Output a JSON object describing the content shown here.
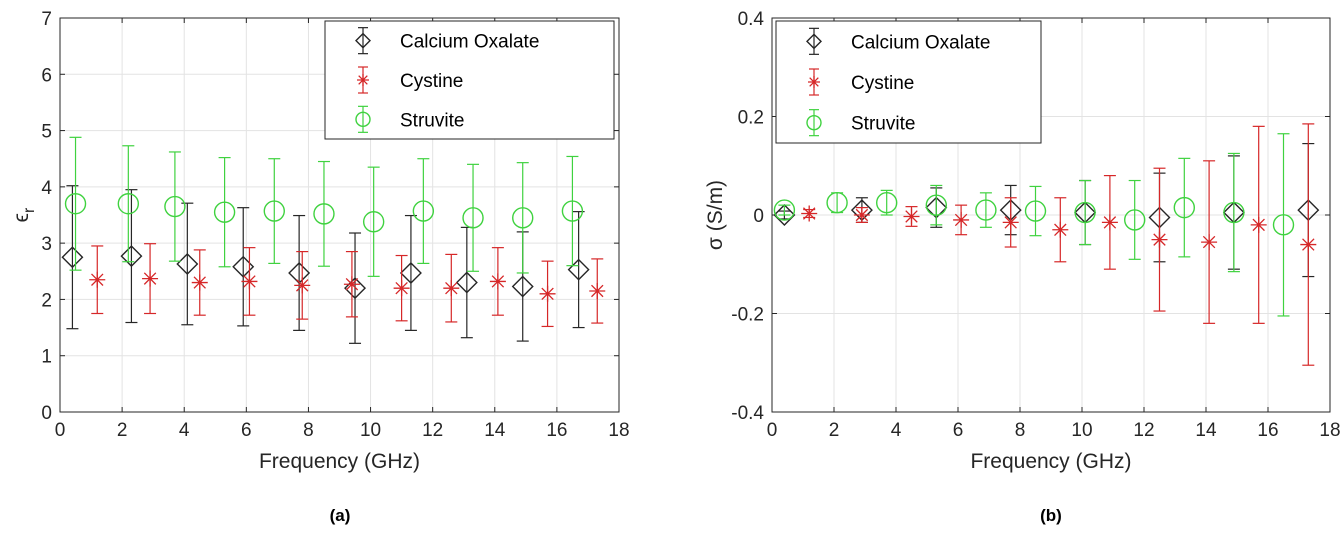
{
  "colors": {
    "Calcium Oxalate": "#262626",
    "Cystine": "#d62728",
    "Struvite": "#3fd23f",
    "grid": "#e3e3e3",
    "axis": "#262626"
  },
  "chart_data": [
    {
      "type": "scatter",
      "caption": "(a)",
      "xlabel": "Frequency (GHz)",
      "ylabel": "ϵ",
      "ylabel_sub": "r",
      "xlim": [
        0,
        18
      ],
      "ylim": [
        0,
        7
      ],
      "xticks": [
        0,
        2,
        4,
        6,
        8,
        10,
        12,
        14,
        16,
        18
      ],
      "yticks": [
        0,
        1,
        2,
        3,
        4,
        5,
        6,
        7
      ],
      "grid": true,
      "legend_position": "top-right",
      "series": [
        {
          "name": "Calcium Oxalate",
          "marker": "diamond",
          "x": [
            0.4,
            2.3,
            4.1,
            5.9,
            7.7,
            9.5,
            11.3,
            13.1,
            14.9,
            16.7
          ],
          "y": [
            2.75,
            2.77,
            2.63,
            2.58,
            2.47,
            2.2,
            2.47,
            2.3,
            2.23,
            2.53
          ],
          "err": [
            1.27,
            1.18,
            1.08,
            1.05,
            1.02,
            0.98,
            1.02,
            0.98,
            0.97,
            1.03
          ]
        },
        {
          "name": "Cystine",
          "marker": "star",
          "x": [
            1.2,
            2.9,
            4.5,
            6.1,
            7.8,
            9.4,
            11.0,
            12.6,
            14.1,
            15.7,
            17.3
          ],
          "y": [
            2.35,
            2.37,
            2.3,
            2.32,
            2.25,
            2.27,
            2.2,
            2.2,
            2.32,
            2.1,
            2.15
          ],
          "err": [
            0.6,
            0.62,
            0.58,
            0.6,
            0.6,
            0.58,
            0.58,
            0.6,
            0.6,
            0.58,
            0.57
          ]
        },
        {
          "name": "Struvite",
          "marker": "circle",
          "x": [
            0.5,
            2.2,
            3.7,
            5.3,
            6.9,
            8.5,
            10.1,
            11.7,
            13.3,
            14.9,
            16.5
          ],
          "y": [
            3.7,
            3.7,
            3.65,
            3.55,
            3.57,
            3.52,
            3.38,
            3.57,
            3.45,
            3.45,
            3.57
          ],
          "err": [
            1.18,
            1.03,
            0.97,
            0.97,
            0.93,
            0.93,
            0.97,
            0.93,
            0.95,
            0.98,
            0.97
          ]
        }
      ]
    },
    {
      "type": "scatter",
      "caption": "(b)",
      "xlabel": "Frequency (GHz)",
      "ylabel": "σ (S/m)",
      "xlim": [
        0,
        18
      ],
      "ylim": [
        -0.4,
        0.4
      ],
      "xticks": [
        0,
        2,
        4,
        6,
        8,
        10,
        12,
        14,
        16,
        18
      ],
      "yticks": [
        -0.4,
        -0.2,
        0,
        0.2,
        0.4
      ],
      "grid": true,
      "legend_position": "top-left",
      "series": [
        {
          "name": "Calcium Oxalate",
          "marker": "diamond",
          "x": [
            0.4,
            2.9,
            5.3,
            7.7,
            10.1,
            12.5,
            14.9,
            17.3
          ],
          "y": [
            0.0,
            0.01,
            0.015,
            0.01,
            0.005,
            -0.005,
            0.005,
            0.01
          ],
          "err": [
            0.008,
            0.025,
            0.04,
            0.05,
            0.065,
            0.09,
            0.115,
            0.135
          ]
        },
        {
          "name": "Cystine",
          "marker": "star",
          "x": [
            1.2,
            2.9,
            4.5,
            6.1,
            7.7,
            9.3,
            10.9,
            12.5,
            14.1,
            15.7,
            17.3
          ],
          "y": [
            0.003,
            0.0,
            -0.003,
            -0.01,
            -0.015,
            -0.03,
            -0.015,
            -0.05,
            -0.055,
            -0.02,
            -0.06
          ],
          "err": [
            0.008,
            0.015,
            0.02,
            0.03,
            0.05,
            0.065,
            0.095,
            0.145,
            0.165,
            0.2,
            0.245
          ]
        },
        {
          "name": "Struvite",
          "marker": "circle",
          "x": [
            0.4,
            2.1,
            3.7,
            5.3,
            6.9,
            8.5,
            10.1,
            11.7,
            13.3,
            14.9,
            16.5
          ],
          "y": [
            0.01,
            0.025,
            0.025,
            0.02,
            0.01,
            0.008,
            0.005,
            -0.01,
            0.015,
            0.005,
            -0.02
          ],
          "err": [
            0.01,
            0.02,
            0.025,
            0.04,
            0.035,
            0.05,
            0.065,
            0.08,
            0.1,
            0.12,
            0.185
          ]
        }
      ]
    }
  ]
}
